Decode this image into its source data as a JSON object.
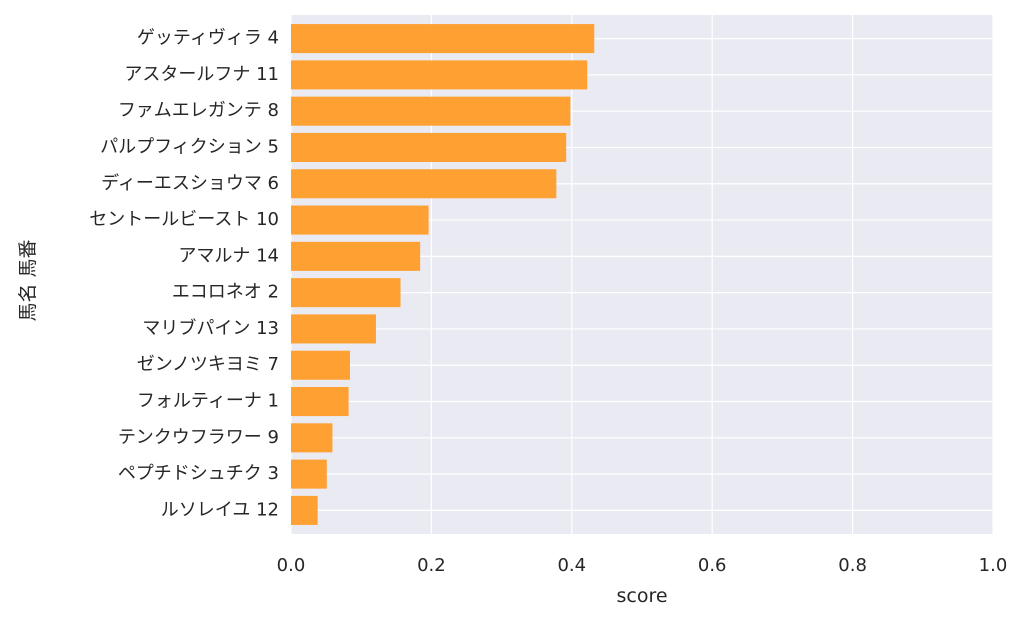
{
  "chart_data": {
    "type": "bar",
    "orientation": "horizontal",
    "categories": [
      "ゲッティヴィラ 4",
      "アスタールフナ 11",
      "ファムエレガンテ 8",
      "パルプフィクション 5",
      "ディーエスショウマ 6",
      "セントールビースト 10",
      "アマルナ 14",
      "エコロネオ 2",
      "マリブパイン 13",
      "ゼンノツキヨミ 7",
      "フォルティーナ 1",
      "テンクウフラワー 9",
      "ペプチドシュチク 3",
      "ルソレイユ 12"
    ],
    "values": [
      0.432,
      0.422,
      0.398,
      0.392,
      0.378,
      0.196,
      0.184,
      0.156,
      0.121,
      0.084,
      0.082,
      0.059,
      0.051,
      0.038
    ],
    "xlabel": "score",
    "ylabel": "馬名 馬番",
    "xlim": [
      0,
      1.0
    ],
    "xticks": [
      "0.0",
      "0.2",
      "0.4",
      "0.6",
      "0.8",
      "1.0"
    ],
    "grid": true,
    "bar_color": "#ff9922",
    "background_color": "#eaeaf2"
  }
}
